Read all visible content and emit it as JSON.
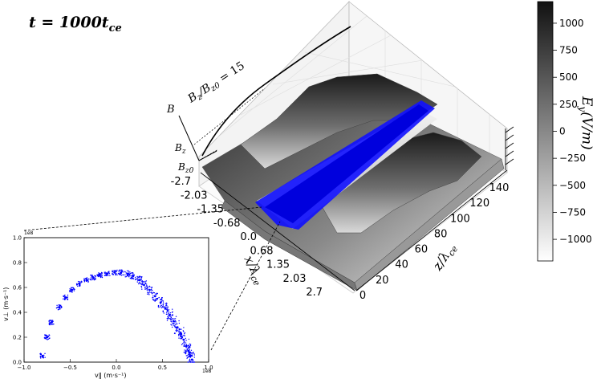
{
  "time_label": {
    "main": "t = 1000t",
    "sub": "ce"
  },
  "main_plot": {
    "x_axis_label": {
      "main": "x/λ",
      "sub": "ce"
    },
    "x_ticks": [
      "-2.7",
      "-2.03",
      "-1.35",
      "-0.68",
      "0.0",
      "0.68",
      "1.35",
      "2.03",
      "2.7"
    ],
    "z_axis_label": {
      "main": "z/λ",
      "sub": "ce"
    },
    "z_ticks": [
      "0",
      "20",
      "40",
      "60",
      "80",
      "100",
      "120",
      "140"
    ],
    "field_annotation": {
      "b1": "B",
      "b1sub": "z",
      "slash": "/B",
      "b2sub": "z0",
      "rest": " = 15"
    },
    "inset_b_axis": {
      "top": "B",
      "mid": "B",
      "mid_sub": "z",
      "bot": "B",
      "bot_sub": "z0"
    }
  },
  "colorbar": {
    "label": {
      "main": "E",
      "sub": "y",
      "rest": "(V/m)"
    },
    "ticks": [
      "1000",
      "750",
      "500",
      "250",
      "0",
      "−250",
      "−500",
      "−750",
      "−1000"
    ],
    "vmin": -1200,
    "vmax": 1200,
    "colormap": "gray_r"
  },
  "chart_data": {
    "type": "scatter",
    "xlabel": "v‖ (m·s⁻¹)",
    "ylabel": "v⊥ (m·s⁻¹)",
    "xlim": [
      -1.0,
      1.0
    ],
    "ylim": [
      0.0,
      1.0
    ],
    "x_multiplier": "1e8",
    "y_multiplier": "1e8",
    "x_ticks": [
      "−1.0",
      "−0.5",
      "0.0",
      "0.5",
      "1.0"
    ],
    "y_ticks": [
      "0.0",
      "0.2",
      "0.4",
      "0.6",
      "0.8",
      "1.0"
    ],
    "series": [
      {
        "color": "#0000ff",
        "x": [
          -0.8,
          -0.75,
          -0.7,
          -0.62,
          -0.55,
          -0.48,
          -0.4,
          -0.32,
          -0.25,
          -0.18,
          -0.1,
          -0.02,
          0.05,
          0.12,
          0.18,
          0.25,
          0.3,
          0.36,
          0.42,
          0.48,
          0.53,
          0.58,
          0.62,
          0.66,
          0.7,
          0.73,
          0.76,
          0.78,
          0.8,
          0.82
        ],
        "y": [
          0.05,
          0.2,
          0.32,
          0.44,
          0.52,
          0.58,
          0.63,
          0.66,
          0.68,
          0.7,
          0.71,
          0.72,
          0.72,
          0.71,
          0.69,
          0.66,
          0.62,
          0.58,
          0.53,
          0.48,
          0.43,
          0.38,
          0.33,
          0.28,
          0.23,
          0.18,
          0.13,
          0.09,
          0.05,
          0.02
        ]
      }
    ]
  }
}
